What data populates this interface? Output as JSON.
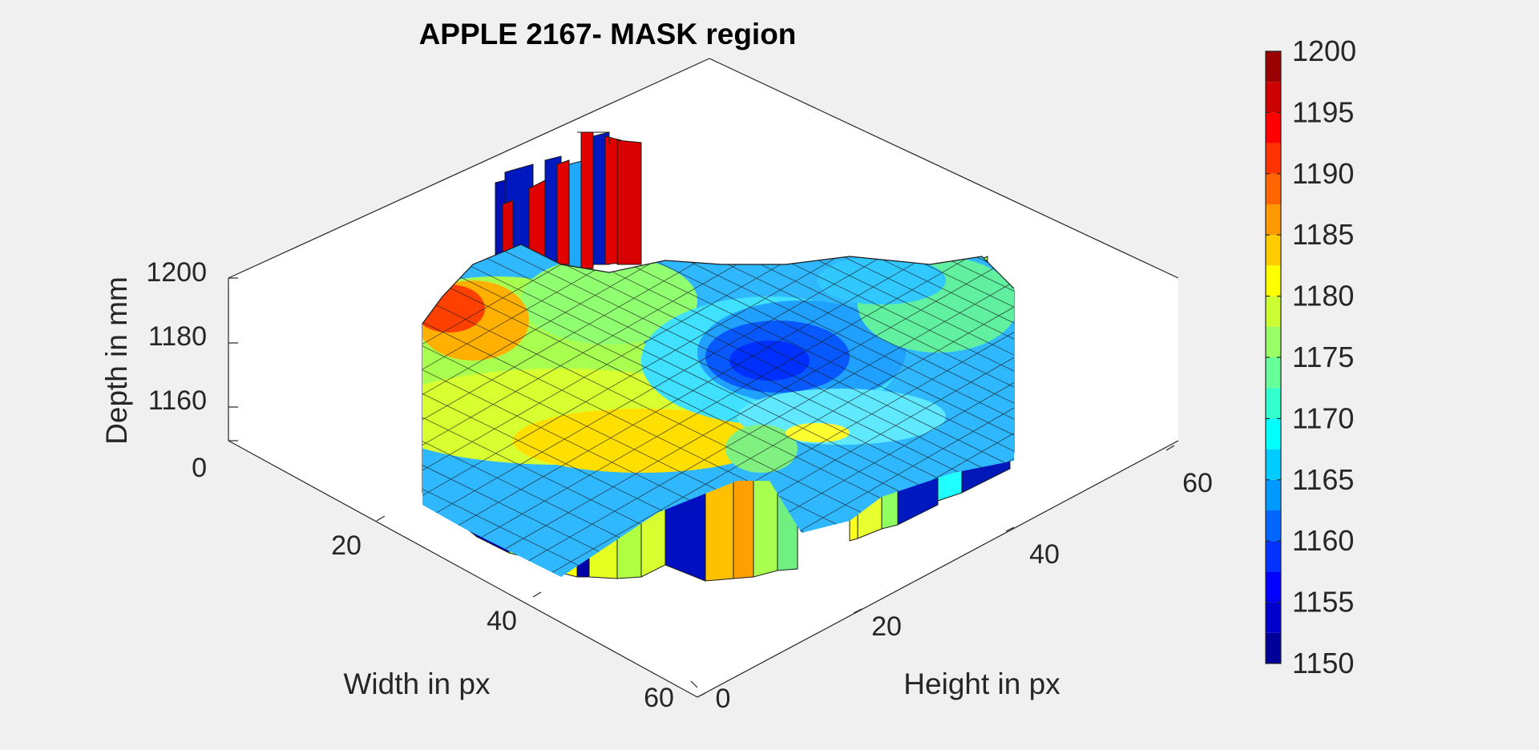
{
  "chart_data": {
    "type": "surface",
    "title": "APPLE 2167- MASK region",
    "xlabel": "Width in px",
    "ylabel": "Height in px",
    "zlabel": "Depth in mm",
    "x_ticks": [
      "20",
      "40",
      "60"
    ],
    "y_ticks": [
      "0",
      "20",
      "40",
      "60"
    ],
    "z_ticks": [
      "0",
      "1160",
      "1180",
      "1200"
    ],
    "xlim": [
      0,
      64
    ],
    "ylim": [
      0,
      64
    ],
    "zlim": [
      1150,
      1200
    ],
    "colormap": "jet",
    "colorbar": {
      "location": "right",
      "ticks": [
        "1150",
        "1155",
        "1160",
        "1165",
        "1170",
        "1175",
        "1180",
        "1185",
        "1190",
        "1195",
        "1200"
      ],
      "limits": [
        1150,
        1200
      ],
      "levels": 20
    },
    "surface_summary": {
      "min_depth": 1152,
      "max_depth": 1200,
      "description_values": {
        "front_left_rim": 1190,
        "center_bowl": 1158,
        "back_right_rim": 1175
      }
    }
  }
}
